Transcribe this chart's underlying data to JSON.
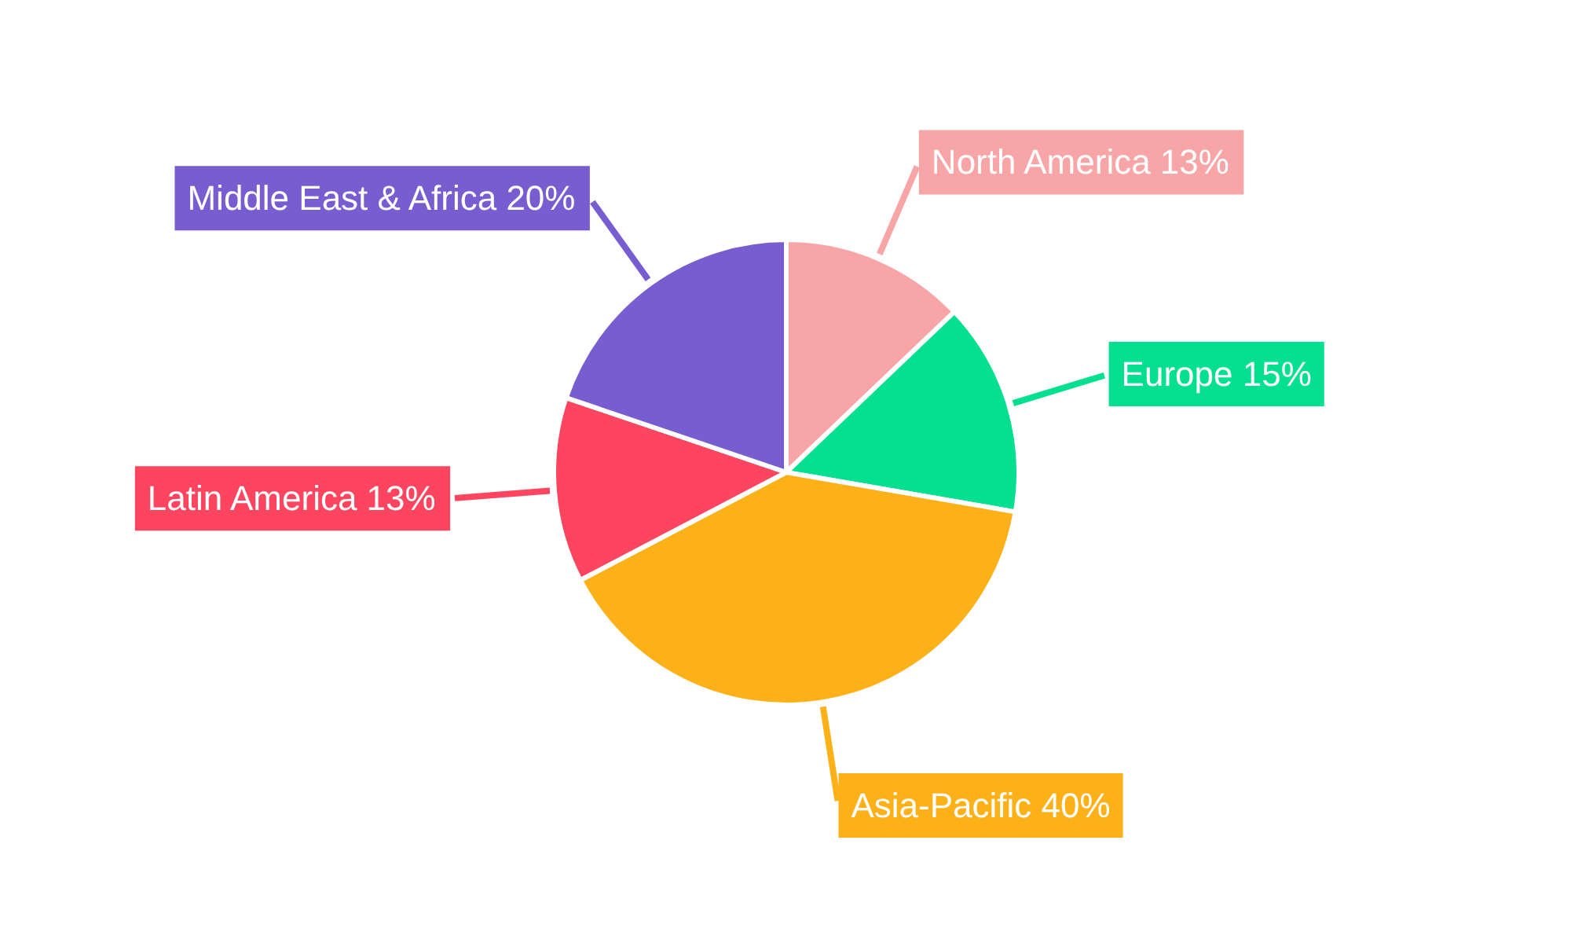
{
  "chart_data": {
    "type": "pie",
    "categories": [
      "North America",
      "Europe",
      "Asia-Pacific",
      "Latin America",
      "Middle East & Africa"
    ],
    "values": [
      13,
      15,
      40,
      13,
      20
    ],
    "colors": [
      "#f8a5a8",
      "#04e08f",
      "#fdb119",
      "#fe4560",
      "#775dd0"
    ],
    "value_labels": [
      "13%",
      "15%",
      "40%",
      "13%",
      "20%"
    ]
  }
}
